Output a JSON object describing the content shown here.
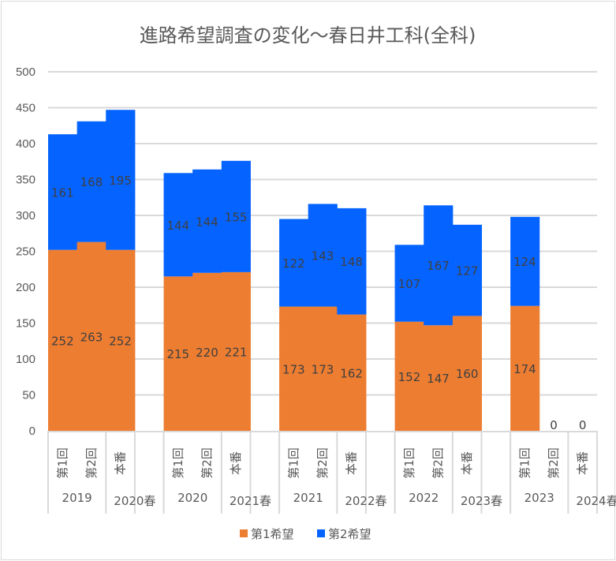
{
  "chart_data": {
    "type": "bar",
    "stacked": true,
    "title": "進路希望調査の変化～春日井工科(全科)",
    "xlabel": "",
    "ylabel": "",
    "ylim": [
      0,
      500
    ],
    "yticks": [
      0,
      50,
      100,
      150,
      200,
      250,
      300,
      350,
      400,
      450,
      500
    ],
    "grid": true,
    "legend_position": "bottom",
    "colors": {
      "first": "#ED7D31",
      "second": "#0563FF"
    },
    "groups": [
      {
        "labels": [
          "2019",
          "2020春"
        ],
        "categories": [
          "第1回",
          "第2回",
          "本番",
          ""
        ]
      },
      {
        "labels": [
          "2020",
          "2021春"
        ],
        "categories": [
          "第1回",
          "第2回",
          "本番",
          ""
        ]
      },
      {
        "labels": [
          "2021",
          "2022春"
        ],
        "categories": [
          "第1回",
          "第2回",
          "本番",
          ""
        ]
      },
      {
        "labels": [
          "2022",
          "2023春"
        ],
        "categories": [
          "第1回",
          "第2回",
          "本番",
          ""
        ]
      },
      {
        "labels": [
          "2023",
          "2024春"
        ],
        "categories": [
          "第1回",
          "第2回",
          "本番"
        ]
      }
    ],
    "series": [
      {
        "name": "第1希望",
        "values": [
          252,
          263,
          252,
          null,
          215,
          220,
          221,
          null,
          173,
          173,
          162,
          null,
          152,
          147,
          160,
          null,
          174,
          0,
          0
        ]
      },
      {
        "name": "第2希望",
        "values": [
          161,
          168,
          195,
          null,
          144,
          144,
          155,
          null,
          122,
          143,
          148,
          null,
          107,
          167,
          127,
          null,
          124,
          null,
          null
        ]
      }
    ]
  }
}
